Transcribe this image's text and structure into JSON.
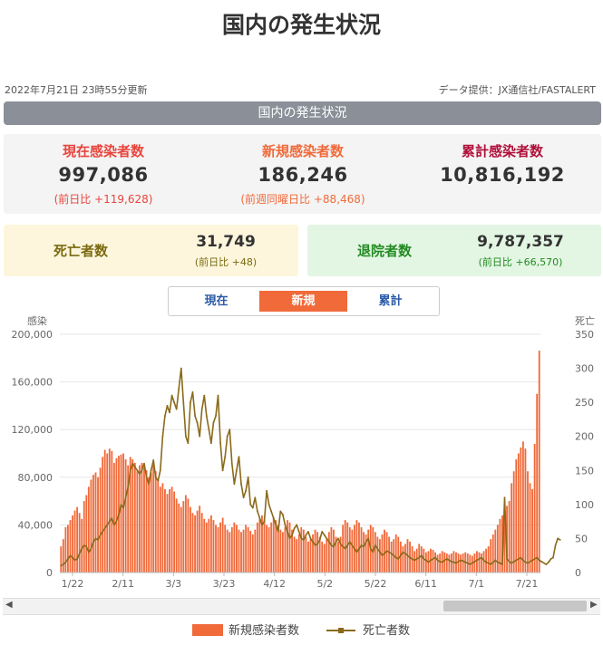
{
  "page": {
    "title": "国内の発生状況",
    "update_time": "2022年7月21日 23時55分更新",
    "source": "データ提供：JX通信社/FASTALERT",
    "section_label": "国内の発生状況"
  },
  "stats": {
    "current": {
      "label": "現在感染者数",
      "value": "997,086",
      "sub": "(前日比 +119,628)",
      "color": "#e8453c"
    },
    "new": {
      "label": "新規感染者数",
      "value": "186,246",
      "sub": "(前週同曜日比 +88,468)",
      "color": "#f06a3a"
    },
    "total": {
      "label": "累計感染者数",
      "value": "10,816,192",
      "color": "#b0103a"
    }
  },
  "deaths": {
    "label": "死亡者数",
    "value": "31,749",
    "sub": "(前日比 +48)",
    "color": "#7a6a10"
  },
  "recovered": {
    "label": "退院者数",
    "value": "9,787,357",
    "sub": "(前日比 +66,570)",
    "color": "#228a22"
  },
  "tabs": [
    {
      "label": "現在",
      "active": false
    },
    {
      "label": "新規",
      "active": true
    },
    {
      "label": "累計",
      "active": false
    }
  ],
  "chart_data": {
    "type": "bar",
    "left_axis_label": "感染",
    "right_axis_label": "死亡",
    "y_left_ticks": [
      "200,000",
      "160,000",
      "120,000",
      "80,000",
      "40,000",
      "0"
    ],
    "y_right_ticks": [
      "350",
      "300",
      "250",
      "200",
      "150",
      "100",
      "50",
      "0"
    ],
    "ylim_left": [
      0,
      200000
    ],
    "ylim_right": [
      0,
      350
    ],
    "x_ticks": [
      "1/22",
      "2/11",
      "3/3",
      "3/23",
      "4/12",
      "5/2",
      "5/22",
      "6/11",
      "7/1",
      "7/21"
    ],
    "bar_color": "#f06a3a",
    "line_color": "#8a6a1a",
    "grid": true,
    "legend_position": "bottom",
    "series": [
      {
        "name": "新規感染者数",
        "kind": "bar",
        "axis": "left",
        "values": [
          22000,
          28000,
          38000,
          40000,
          44000,
          48000,
          52000,
          55000,
          50000,
          45000,
          60000,
          65000,
          72000,
          78000,
          82000,
          84000,
          80000,
          88000,
          97000,
          103000,
          100000,
          104000,
          102000,
          92000,
          96000,
          98000,
          99000,
          100000,
          95000,
          90000,
          97000,
          95000,
          92000,
          85000,
          90000,
          92000,
          88000,
          86000,
          80000,
          84000,
          90000,
          85000,
          78000,
          72000,
          75000,
          70000,
          66000,
          70000,
          72000,
          68000,
          62000,
          58000,
          55000,
          60000,
          65000,
          62000,
          55000,
          50000,
          48000,
          52000,
          56000,
          50000,
          45000,
          42000,
          45000,
          48000,
          44000,
          40000,
          38000,
          42000,
          46000,
          40000,
          36000,
          34000,
          38000,
          42000,
          40000,
          36000,
          34000,
          36000,
          40000,
          38000,
          35000,
          32000,
          36000,
          42000,
          45000,
          48000,
          44000,
          40000,
          38000,
          42000,
          46000,
          44000,
          40000,
          36000,
          34000,
          38000,
          44000,
          42000,
          36000,
          30000,
          28000,
          32000,
          38000,
          36000,
          30000,
          26000,
          28000,
          32000,
          36000,
          34000,
          30000,
          26000,
          24000,
          28000,
          34000,
          38000,
          36000,
          30000,
          26000,
          30000,
          40000,
          44000,
          42000,
          38000,
          36000,
          40000,
          44000,
          42000,
          38000,
          34000,
          32000,
          36000,
          40000,
          38000,
          34000,
          30000,
          28000,
          32000,
          36000,
          34000,
          30000,
          26000,
          28000,
          32000,
          30000,
          26000,
          22000,
          24000,
          28000,
          26000,
          22000,
          18000,
          20000,
          24000,
          22000,
          20000,
          17000,
          18000,
          20000,
          19000,
          17000,
          15000,
          16000,
          18000,
          17000,
          16000,
          15000,
          16000,
          18000,
          17000,
          16000,
          15000,
          16000,
          17000,
          16000,
          15000,
          14000,
          16000,
          18000,
          17000,
          16000,
          18000,
          20000,
          22000,
          28000,
          32000,
          36000,
          40000,
          45000,
          48000,
          52000,
          56000,
          60000,
          75000,
          85000,
          95000,
          100000,
          105000,
          110000,
          104000,
          85000,
          75000,
          70000,
          108000,
          150000,
          186246
        ]
      },
      {
        "name": "死亡者数",
        "kind": "line",
        "axis": "right",
        "values": [
          10,
          12,
          15,
          20,
          25,
          22,
          18,
          20,
          28,
          35,
          40,
          38,
          30,
          35,
          45,
          50,
          48,
          55,
          60,
          65,
          70,
          75,
          80,
          70,
          75,
          85,
          100,
          95,
          110,
          125,
          150,
          160,
          155,
          150,
          145,
          150,
          160,
          140,
          130,
          150,
          165,
          140,
          135,
          150,
          200,
          230,
          245,
          235,
          260,
          250,
          240,
          270,
          300,
          250,
          200,
          190,
          250,
          265,
          230,
          220,
          200,
          240,
          260,
          230,
          210,
          190,
          220,
          230,
          260,
          190,
          150,
          170,
          200,
          210,
          160,
          130,
          150,
          170,
          130,
          110,
          120,
          140,
          100,
          95,
          110,
          90,
          80,
          70,
          75,
          120,
          100,
          90,
          80,
          70,
          60,
          90,
          85,
          70,
          60,
          50,
          55,
          65,
          70,
          60,
          50,
          48,
          55,
          60,
          50,
          45,
          40,
          42,
          48,
          60,
          55,
          50,
          45,
          40,
          38,
          45,
          50,
          42,
          38,
          35,
          40,
          45,
          40,
          35,
          30,
          35,
          40,
          38,
          45,
          50,
          35,
          30,
          40,
          35,
          30,
          25,
          28,
          32,
          30,
          28,
          25,
          22,
          20,
          25,
          30,
          28,
          25,
          22,
          20,
          18,
          20,
          22,
          25,
          20,
          18,
          15,
          18,
          20,
          22,
          18,
          16,
          15,
          18,
          20,
          18,
          16,
          15,
          14,
          16,
          18,
          17,
          15,
          14,
          12,
          14,
          16,
          18,
          20,
          22,
          18,
          15,
          14,
          12,
          15,
          18,
          15,
          14,
          12,
          110,
          20,
          16,
          14,
          16,
          18,
          20,
          22,
          18,
          15,
          14,
          16,
          18,
          20,
          22,
          18,
          16,
          14,
          12,
          15,
          20,
          22,
          40,
          50,
          48
        ]
      }
    ]
  }
}
